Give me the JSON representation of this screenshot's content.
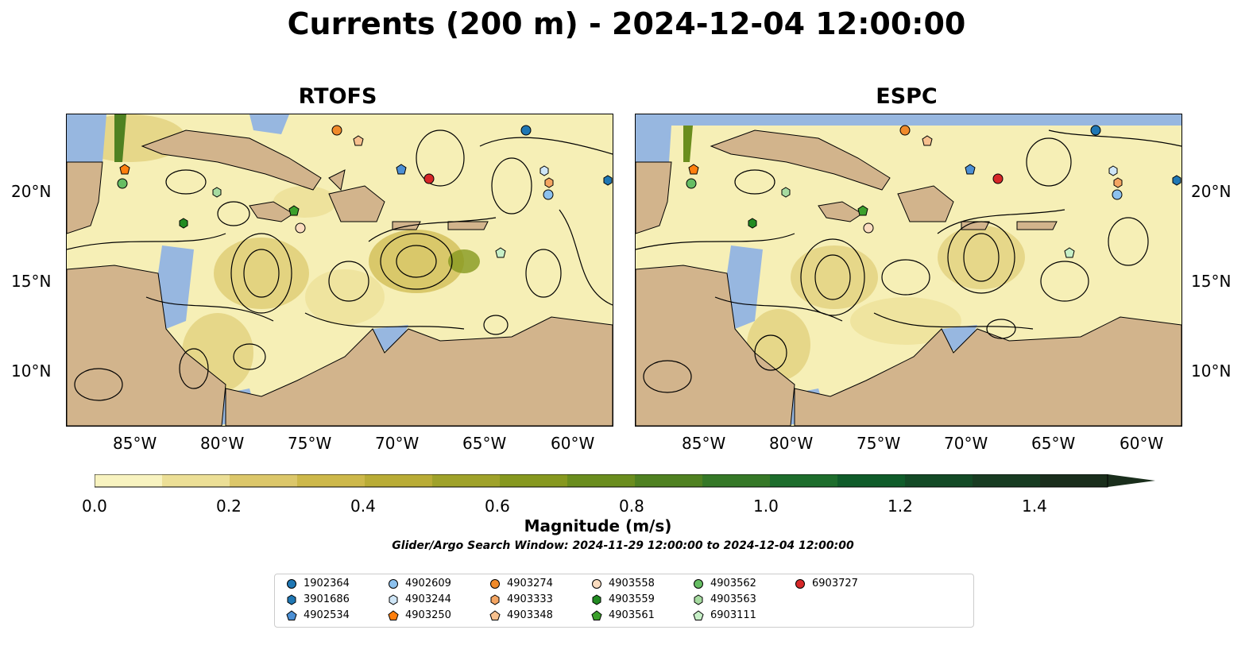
{
  "title": "Currents (200 m) - 2024-12-04 12:00:00",
  "panels": [
    {
      "name": "RTOFS"
    },
    {
      "name": "ESPC"
    }
  ],
  "lat_ticks": [
    "20°N",
    "15°N",
    "10°N"
  ],
  "lon_ticks": [
    "85°W",
    "80°W",
    "75°W",
    "70°W",
    "65°W",
    "60°W"
  ],
  "colorbar": {
    "label": "Magnitude (m/s)",
    "ticks": [
      "0.0",
      "0.2",
      "0.4",
      "0.6",
      "0.8",
      "1.0",
      "1.2",
      "1.4"
    ],
    "colors": [
      "#f8f3c0",
      "#ecdf96",
      "#dcc76a",
      "#cdb84a",
      "#b9ac36",
      "#9fa22a",
      "#86981f",
      "#6a8d1e",
      "#4f8121",
      "#357827",
      "#1d6d2c",
      "#0f5c2a",
      "#134a26",
      "#183c22",
      "#1a2e1c"
    ]
  },
  "search_window": "Glider/Argo Search Window: 2024-11-29 12:00:00 to 2024-12-04 12:00:00",
  "legend": [
    {
      "id": "1902364",
      "color": "#1f77b4",
      "shape": "circle"
    },
    {
      "id": "3901686",
      "color": "#1f77b4",
      "shape": "hexagon"
    },
    {
      "id": "4902534",
      "color": "#4c8fd4",
      "shape": "pentagon"
    },
    {
      "id": "4902609",
      "color": "#8cc1ee",
      "shape": "circle"
    },
    {
      "id": "4903244",
      "color": "#cfe6f7",
      "shape": "hexagon"
    },
    {
      "id": "4903250",
      "color": "#ff7f0e",
      "shape": "pentagon"
    },
    {
      "id": "4903274",
      "color": "#f08a2a",
      "shape": "circle"
    },
    {
      "id": "4903333",
      "color": "#f4a562",
      "shape": "hexagon"
    },
    {
      "id": "4903348",
      "color": "#f7c08e",
      "shape": "pentagon"
    },
    {
      "id": "4903558",
      "color": "#fbdcbf",
      "shape": "circle"
    },
    {
      "id": "4903559",
      "color": "#228b22",
      "shape": "hexagon"
    },
    {
      "id": "4903561",
      "color": "#3ca02c",
      "shape": "pentagon"
    },
    {
      "id": "4903562",
      "color": "#66bd63",
      "shape": "circle"
    },
    {
      "id": "4903563",
      "color": "#a6dba0",
      "shape": "hexagon"
    },
    {
      "id": "6903111",
      "color": "#c7f0c7",
      "shape": "pentagon"
    },
    {
      "id": "6903727",
      "color": "#d62728",
      "shape": "circle"
    }
  ]
}
